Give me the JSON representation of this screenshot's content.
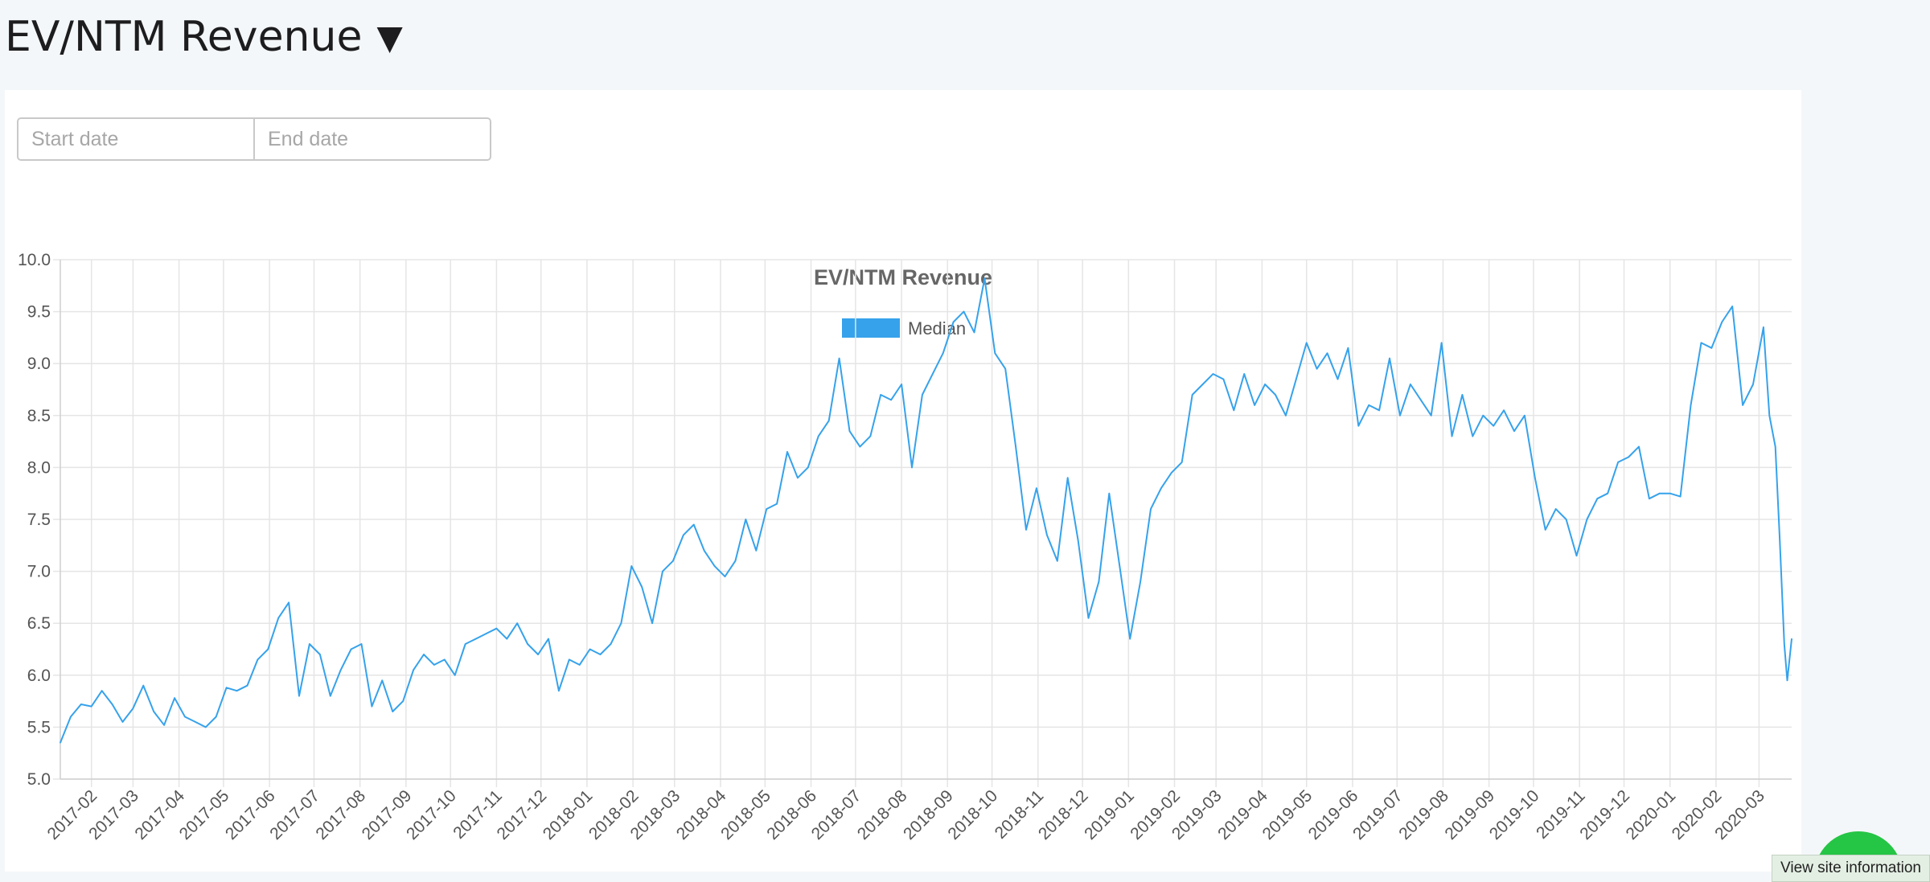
{
  "header": {
    "title": "EV/NTM Revenue",
    "toggle_glyph": "▼"
  },
  "filters": {
    "start_placeholder": "Start date",
    "end_placeholder": "End date"
  },
  "footer": {
    "site_info_label": "View site information"
  },
  "colors": {
    "series": "#36a2eb",
    "grid": "#e5e5e5",
    "text": "#555555",
    "title": "#666666"
  },
  "chart_data": {
    "type": "line",
    "title": "EV/NTM Revenue",
    "legend": {
      "position": "top-center",
      "entries": [
        "Median"
      ]
    },
    "xlabel": "",
    "ylabel": "",
    "ylim": [
      5.0,
      10.0
    ],
    "yticks": [
      "5.0",
      "5.5",
      "6.0",
      "6.5",
      "7.0",
      "7.5",
      "8.0",
      "8.5",
      "9.0",
      "9.5",
      "10.0"
    ],
    "xlim": [
      "2017-01-11",
      "2020-03-23"
    ],
    "xticks": [
      "2017-02",
      "2017-03",
      "2017-04",
      "2017-05",
      "2017-06",
      "2017-07",
      "2017-08",
      "2017-09",
      "2017-10",
      "2017-11",
      "2017-12",
      "2018-01",
      "2018-02",
      "2018-03",
      "2018-04",
      "2018-05",
      "2018-06",
      "2018-07",
      "2018-08",
      "2018-09",
      "2018-10",
      "2018-11",
      "2018-12",
      "2019-01",
      "2019-02",
      "2019-03",
      "2019-04",
      "2019-05",
      "2019-06",
      "2019-07",
      "2019-08",
      "2019-09",
      "2019-10",
      "2019-11",
      "2019-12",
      "2020-01",
      "2020-02",
      "2020-03"
    ],
    "grid": true,
    "series": [
      {
        "name": "Median",
        "color": "#36a2eb",
        "points": [
          [
            "2017-01-11",
            5.35
          ],
          [
            "2017-01-18",
            5.6
          ],
          [
            "2017-01-25",
            5.72
          ],
          [
            "2017-02-01",
            5.7
          ],
          [
            "2017-02-08",
            5.85
          ],
          [
            "2017-02-15",
            5.72
          ],
          [
            "2017-02-22",
            5.55
          ],
          [
            "2017-03-01",
            5.68
          ],
          [
            "2017-03-08",
            5.9
          ],
          [
            "2017-03-15",
            5.65
          ],
          [
            "2017-03-22",
            5.52
          ],
          [
            "2017-03-29",
            5.78
          ],
          [
            "2017-04-05",
            5.6
          ],
          [
            "2017-04-12",
            5.55
          ],
          [
            "2017-04-19",
            5.5
          ],
          [
            "2017-04-26",
            5.6
          ],
          [
            "2017-05-03",
            5.88
          ],
          [
            "2017-05-10",
            5.85
          ],
          [
            "2017-05-17",
            5.9
          ],
          [
            "2017-05-24",
            6.15
          ],
          [
            "2017-05-31",
            6.25
          ],
          [
            "2017-06-07",
            6.55
          ],
          [
            "2017-06-14",
            6.7
          ],
          [
            "2017-06-21",
            5.8
          ],
          [
            "2017-06-28",
            6.3
          ],
          [
            "2017-07-05",
            6.2
          ],
          [
            "2017-07-12",
            5.8
          ],
          [
            "2017-07-19",
            6.05
          ],
          [
            "2017-07-26",
            6.25
          ],
          [
            "2017-08-02",
            6.3
          ],
          [
            "2017-08-09",
            5.7
          ],
          [
            "2017-08-16",
            5.95
          ],
          [
            "2017-08-23",
            5.65
          ],
          [
            "2017-08-30",
            5.75
          ],
          [
            "2017-09-06",
            6.05
          ],
          [
            "2017-09-13",
            6.2
          ],
          [
            "2017-09-20",
            6.1
          ],
          [
            "2017-09-27",
            6.15
          ],
          [
            "2017-10-04",
            6.0
          ],
          [
            "2017-10-11",
            6.3
          ],
          [
            "2017-10-18",
            6.35
          ],
          [
            "2017-10-25",
            6.4
          ],
          [
            "2017-11-01",
            6.45
          ],
          [
            "2017-11-08",
            6.35
          ],
          [
            "2017-11-15",
            6.5
          ],
          [
            "2017-11-22",
            6.3
          ],
          [
            "2017-11-29",
            6.2
          ],
          [
            "2017-12-06",
            6.35
          ],
          [
            "2017-12-13",
            5.85
          ],
          [
            "2017-12-20",
            6.15
          ],
          [
            "2017-12-27",
            6.1
          ],
          [
            "2018-01-03",
            6.25
          ],
          [
            "2018-01-10",
            6.2
          ],
          [
            "2018-01-17",
            6.3
          ],
          [
            "2018-01-24",
            6.5
          ],
          [
            "2018-01-31",
            7.05
          ],
          [
            "2018-02-07",
            6.85
          ],
          [
            "2018-02-14",
            6.5
          ],
          [
            "2018-02-21",
            7.0
          ],
          [
            "2018-02-28",
            7.1
          ],
          [
            "2018-03-07",
            7.35
          ],
          [
            "2018-03-14",
            7.45
          ],
          [
            "2018-03-21",
            7.2
          ],
          [
            "2018-03-28",
            7.05
          ],
          [
            "2018-04-04",
            6.95
          ],
          [
            "2018-04-11",
            7.1
          ],
          [
            "2018-04-18",
            7.5
          ],
          [
            "2018-04-25",
            7.2
          ],
          [
            "2018-05-02",
            7.6
          ],
          [
            "2018-05-09",
            7.65
          ],
          [
            "2018-05-16",
            8.15
          ],
          [
            "2018-05-23",
            7.9
          ],
          [
            "2018-05-30",
            8.0
          ],
          [
            "2018-06-06",
            8.3
          ],
          [
            "2018-06-13",
            8.45
          ],
          [
            "2018-06-20",
            9.05
          ],
          [
            "2018-06-27",
            8.35
          ],
          [
            "2018-07-04",
            8.2
          ],
          [
            "2018-07-11",
            8.3
          ],
          [
            "2018-07-18",
            8.7
          ],
          [
            "2018-07-25",
            8.65
          ],
          [
            "2018-08-01",
            8.8
          ],
          [
            "2018-08-08",
            8.0
          ],
          [
            "2018-08-15",
            8.7
          ],
          [
            "2018-08-22",
            8.9
          ],
          [
            "2018-08-29",
            9.1
          ],
          [
            "2018-09-05",
            9.4
          ],
          [
            "2018-09-12",
            9.5
          ],
          [
            "2018-09-19",
            9.3
          ],
          [
            "2018-09-26",
            9.82
          ],
          [
            "2018-10-03",
            9.1
          ],
          [
            "2018-10-10",
            8.95
          ],
          [
            "2018-10-17",
            8.2
          ],
          [
            "2018-10-24",
            7.4
          ],
          [
            "2018-10-31",
            7.8
          ],
          [
            "2018-11-07",
            7.35
          ],
          [
            "2018-11-14",
            7.1
          ],
          [
            "2018-11-21",
            7.9
          ],
          [
            "2018-11-28",
            7.3
          ],
          [
            "2018-12-05",
            6.55
          ],
          [
            "2018-12-12",
            6.9
          ],
          [
            "2018-12-19",
            7.75
          ],
          [
            "2018-12-26",
            7.05
          ],
          [
            "2019-01-02",
            6.35
          ],
          [
            "2019-01-09",
            6.9
          ],
          [
            "2019-01-16",
            7.6
          ],
          [
            "2019-01-23",
            7.8
          ],
          [
            "2019-01-30",
            7.95
          ],
          [
            "2019-02-06",
            8.05
          ],
          [
            "2019-02-13",
            8.7
          ],
          [
            "2019-02-20",
            8.8
          ],
          [
            "2019-02-27",
            8.9
          ],
          [
            "2019-03-06",
            8.85
          ],
          [
            "2019-03-13",
            8.55
          ],
          [
            "2019-03-20",
            8.9
          ],
          [
            "2019-03-27",
            8.6
          ],
          [
            "2019-04-03",
            8.8
          ],
          [
            "2019-04-10",
            8.7
          ],
          [
            "2019-04-17",
            8.5
          ],
          [
            "2019-04-24",
            8.85
          ],
          [
            "2019-05-01",
            9.2
          ],
          [
            "2019-05-08",
            8.95
          ],
          [
            "2019-05-15",
            9.1
          ],
          [
            "2019-05-22",
            8.85
          ],
          [
            "2019-05-29",
            9.15
          ],
          [
            "2019-06-05",
            8.4
          ],
          [
            "2019-06-12",
            8.6
          ],
          [
            "2019-06-19",
            8.55
          ],
          [
            "2019-06-26",
            9.05
          ],
          [
            "2019-07-03",
            8.5
          ],
          [
            "2019-07-10",
            8.8
          ],
          [
            "2019-07-17",
            8.65
          ],
          [
            "2019-07-24",
            8.5
          ],
          [
            "2019-07-31",
            9.2
          ],
          [
            "2019-08-07",
            8.3
          ],
          [
            "2019-08-14",
            8.7
          ],
          [
            "2019-08-21",
            8.3
          ],
          [
            "2019-08-28",
            8.5
          ],
          [
            "2019-09-04",
            8.4
          ],
          [
            "2019-09-11",
            8.55
          ],
          [
            "2019-09-18",
            8.35
          ],
          [
            "2019-09-25",
            8.5
          ],
          [
            "2019-10-02",
            7.9
          ],
          [
            "2019-10-09",
            7.4
          ],
          [
            "2019-10-16",
            7.6
          ],
          [
            "2019-10-23",
            7.5
          ],
          [
            "2019-10-30",
            7.15
          ],
          [
            "2019-11-06",
            7.5
          ],
          [
            "2019-11-13",
            7.7
          ],
          [
            "2019-11-20",
            7.75
          ],
          [
            "2019-11-27",
            8.05
          ],
          [
            "2019-12-04",
            8.1
          ],
          [
            "2019-12-11",
            8.2
          ],
          [
            "2019-12-18",
            7.7
          ],
          [
            "2019-12-25",
            7.75
          ],
          [
            "2020-01-01",
            7.75
          ],
          [
            "2020-01-08",
            7.72
          ],
          [
            "2020-01-15",
            8.6
          ],
          [
            "2020-01-22",
            9.2
          ],
          [
            "2020-01-29",
            9.15
          ],
          [
            "2020-02-05",
            9.4
          ],
          [
            "2020-02-12",
            9.55
          ],
          [
            "2020-02-19",
            8.6
          ],
          [
            "2020-02-26",
            8.8
          ],
          [
            "2020-03-04",
            9.35
          ],
          [
            "2020-03-08",
            8.5
          ],
          [
            "2020-03-12",
            8.2
          ],
          [
            "2020-03-15",
            7.3
          ],
          [
            "2020-03-18",
            6.3
          ],
          [
            "2020-03-20",
            5.95
          ],
          [
            "2020-03-23",
            6.35
          ]
        ]
      }
    ]
  }
}
